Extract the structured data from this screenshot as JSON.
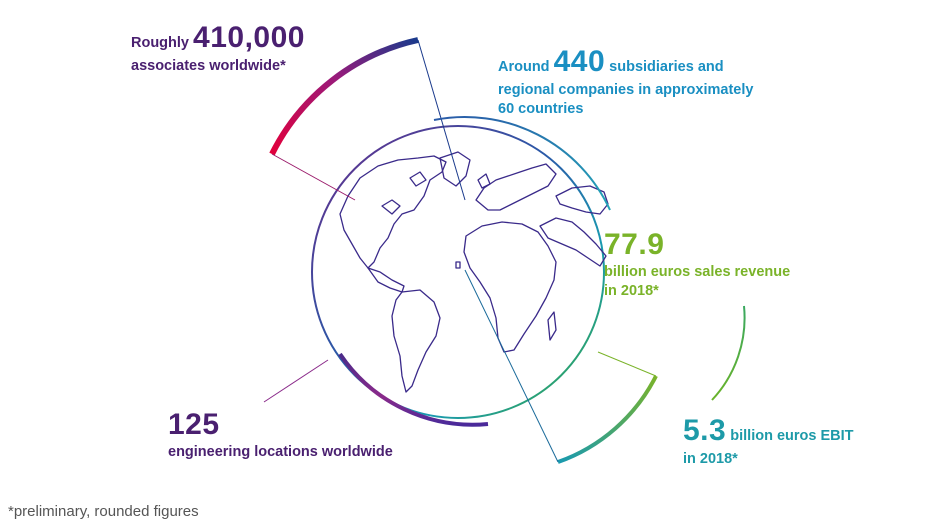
{
  "stats": {
    "associates": {
      "pre": "Roughly ",
      "big": "410,000",
      "line2": "associates worldwide*"
    },
    "subsidiaries": {
      "pre": "Around ",
      "big": "440",
      "post": " subsidiaries and",
      "line2": "regional companies in approximately",
      "line3": "60 countries"
    },
    "revenue": {
      "big": "77.9",
      "line2": "billion euros sales revenue",
      "line3": "in 2018*"
    },
    "ebit": {
      "big": "5.3",
      "post": " billion euros EBIT",
      "line2": "in 2018*"
    },
    "engineering": {
      "big": "125",
      "line2": "engineering locations worldwide"
    }
  },
  "footnote": "*preliminary, rounded figures",
  "colors": {
    "purple": "#4a2070",
    "red": "#e2003b",
    "blue": "#1a8fc2",
    "green": "#7ab329",
    "teal": "#1d9aa8",
    "navy": "#1a3a8c"
  }
}
